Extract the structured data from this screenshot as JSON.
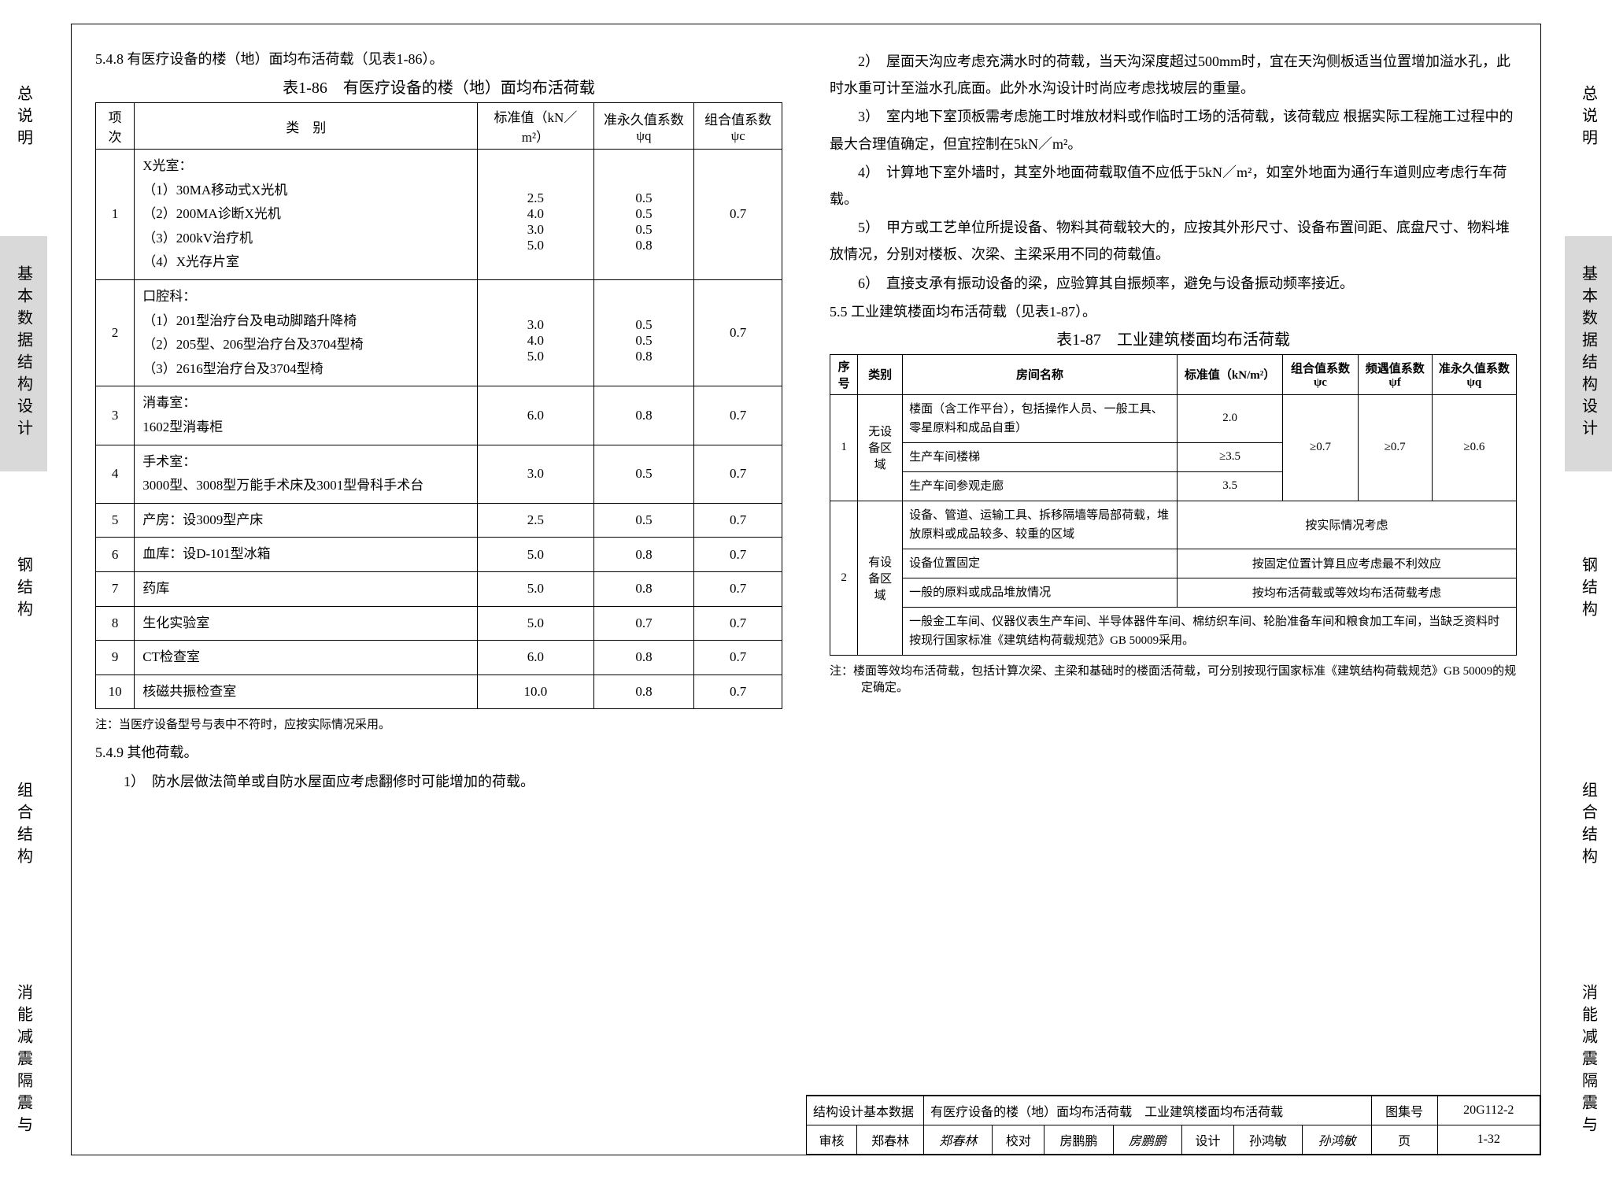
{
  "side_tabs": [
    {
      "label": "总说明",
      "active": false,
      "cols": 1
    },
    {
      "label": [
        "基本数据",
        "结构设计"
      ],
      "active": true,
      "cols": 2
    },
    {
      "label": "钢结构",
      "active": false,
      "cols": 1
    },
    {
      "label": "组合结构",
      "active": false,
      "cols": 1
    },
    {
      "label": [
        "消能减震",
        "隔震与"
      ],
      "active": false,
      "cols": 2
    }
  ],
  "left": {
    "sec_548": "5.4.8 有医疗设备的楼（地）面均布活荷载（见表1-86）。",
    "table86_title": "表1-86　有医疗设备的楼（地）面均布活荷载",
    "t86_headers": [
      "项次",
      "类　别",
      "标准值（kN／m²）",
      "准永久值系数ψq",
      "组合值系数ψc"
    ],
    "t86_rows": [
      {
        "n": "1",
        "cat": "X光室：\n（1）30MA移动式X光机\n（2）200MA诊断X光机\n（3）200kV治疗机\n（4）X光存片室",
        "std": "\n2.5\n4.0\n3.0\n5.0",
        "pq": "\n0.5\n0.5\n0.5\n0.8",
        "pc": "0.7"
      },
      {
        "n": "2",
        "cat": "口腔科：\n（1）201型治疗台及电动脚踏升降椅\n（2）205型、206型治疗台及3704型椅\n（3）2616型治疗台及3704型椅",
        "std": "\n3.0\n4.0\n5.0",
        "pq": "\n0.5\n0.5\n0.8",
        "pc": "0.7"
      },
      {
        "n": "3",
        "cat": "消毒室：\n1602型消毒柜",
        "std": "6.0",
        "pq": "0.8",
        "pc": "0.7"
      },
      {
        "n": "4",
        "cat": "手术室：\n3000型、3008型万能手术床及3001型骨科手术台",
        "std": "3.0",
        "pq": "0.5",
        "pc": "0.7"
      },
      {
        "n": "5",
        "cat": "产房：设3009型产床",
        "std": "2.5",
        "pq": "0.5",
        "pc": "0.7"
      },
      {
        "n": "6",
        "cat": "血库：设D-101型冰箱",
        "std": "5.0",
        "pq": "0.8",
        "pc": "0.7"
      },
      {
        "n": "7",
        "cat": "药库",
        "std": "5.0",
        "pq": "0.8",
        "pc": "0.7"
      },
      {
        "n": "8",
        "cat": "生化实验室",
        "std": "5.0",
        "pq": "0.7",
        "pc": "0.7"
      },
      {
        "n": "9",
        "cat": "CT检查室",
        "std": "6.0",
        "pq": "0.8",
        "pc": "0.7"
      },
      {
        "n": "10",
        "cat": "核磁共振检查室",
        "std": "10.0",
        "pq": "0.8",
        "pc": "0.7"
      }
    ],
    "t86_note": "注：当医疗设备型号与表中不符时，应按实际情况采用。",
    "sec_549": "5.4.9 其他荷载。",
    "p549_1": "1）　防水层做法简单或自防水屋面应考虑翻修时可能增加的荷载。"
  },
  "right": {
    "p2": "2）　屋面天沟应考虑充满水时的荷载，当天沟深度超过500mm时，宜在天沟侧板适当位置增加溢水孔，此时水重可计至溢水孔底面。此外水沟设计时尚应考虑找坡层的重量。",
    "p3": "3）　室内地下室顶板需考虑施工时堆放材料或作临时工场的活荷载，该荷载应 根据实际工程施工过程中的最大合理值确定，但宜控制在5kN／m²。",
    "p4": "4）　计算地下室外墙时，其室外地面荷载取值不应低于5kN／m²，如室外地面为通行车道则应考虑行车荷载。",
    "p5": "5）　甲方或工艺单位所提设备、物料其荷载较大的，应按其外形尺寸、设备布置间距、底盘尺寸、物料堆放情况，分别对楼板、次梁、主梁采用不同的荷载值。",
    "p6": "6）　直接支承有振动设备的梁，应验算其自振频率，避免与设备振动频率接近。",
    "sec_55": "5.5 工业建筑楼面均布活荷载（见表1-87）。",
    "table87_title": "表1-87　工业建筑楼面均布活荷载",
    "t87_headers": [
      "序号",
      "类别",
      "房间名称",
      "标准值（kN/m²）",
      "组合值系数ψc",
      "频遇值系数ψf",
      "准永久值系数ψq"
    ],
    "t87_row1_cat": "无设备区域",
    "t87_row1_a": {
      "room": "楼面（含工作平台），包括操作人员、一般工具、零星原料和成品自重）",
      "std": "2.0"
    },
    "t87_row1_b": {
      "room": "生产车间楼梯",
      "std": "≥3.5"
    },
    "t87_row1_c": {
      "room": "生产车间参观走廊",
      "std": "3.5"
    },
    "t87_row1_psi": {
      "c": "≥0.7",
      "f": "≥0.7",
      "q": "≥0.6"
    },
    "t87_row2_cat": "有设备区域",
    "t87_row2_a": {
      "room": "设备、管道、运输工具、拆移隔墙等局部荷载，堆放原料或成品较多、较重的区域",
      "merge": "按实际情况考虑"
    },
    "t87_row2_b": {
      "room": "设备位置固定",
      "merge": "按固定位置计算且应考虑最不利效应"
    },
    "t87_row2_c": {
      "room": "一般的原料或成品堆放情况",
      "merge": "按均布活荷载或等效均布活荷载考虑"
    },
    "t87_row2_d": "一般金工车间、仪器仪表生产车间、半导体器件车间、棉纺织车间、轮胎准备车间和粮食加工车间，当缺乏资料时按现行国家标准《建筑结构荷载规范》GB 50009采用。",
    "t87_note": "注：楼面等效均布活荷载，包括计算次梁、主梁和基础时的楼面活荷载，可分别按现行国家标准《建筑结构荷载规范》GB 50009的规定确定。"
  },
  "footer": {
    "l1a": "结构设计基本数据",
    "l1b": "有医疗设备的楼（地）面均布活荷载　工业建筑楼面均布活荷载",
    "l1c": "图集号",
    "l1d": "20G112-2",
    "l2": {
      "a": "审核",
      "b": "郑春林",
      "bs": "郑春林",
      "c": "校对",
      "d": "房鹏鹏",
      "ds": "房鹏鹏",
      "e": "设计",
      "f": "孙鸿敏",
      "fs": "孙鸿敏",
      "g": "页",
      "h": "1-32"
    }
  },
  "colors": {
    "active_tab": "#d9d9d9",
    "border": "#000000",
    "bg": "#ffffff"
  }
}
